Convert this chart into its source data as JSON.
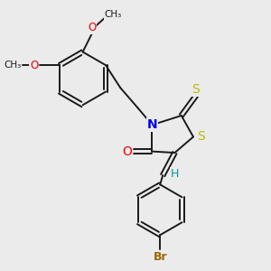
{
  "background_color": "#ebebeb",
  "bond_color": "#1a1a1a",
  "N_color": "#0000ee",
  "O_color": "#ee0000",
  "S_color": "#bbbb00",
  "Br_color": "#996600",
  "H_color": "#009999",
  "figsize": [
    3.0,
    3.0
  ],
  "dpi": 100,
  "xlim": [
    0,
    10
  ],
  "ylim": [
    0,
    10
  ]
}
